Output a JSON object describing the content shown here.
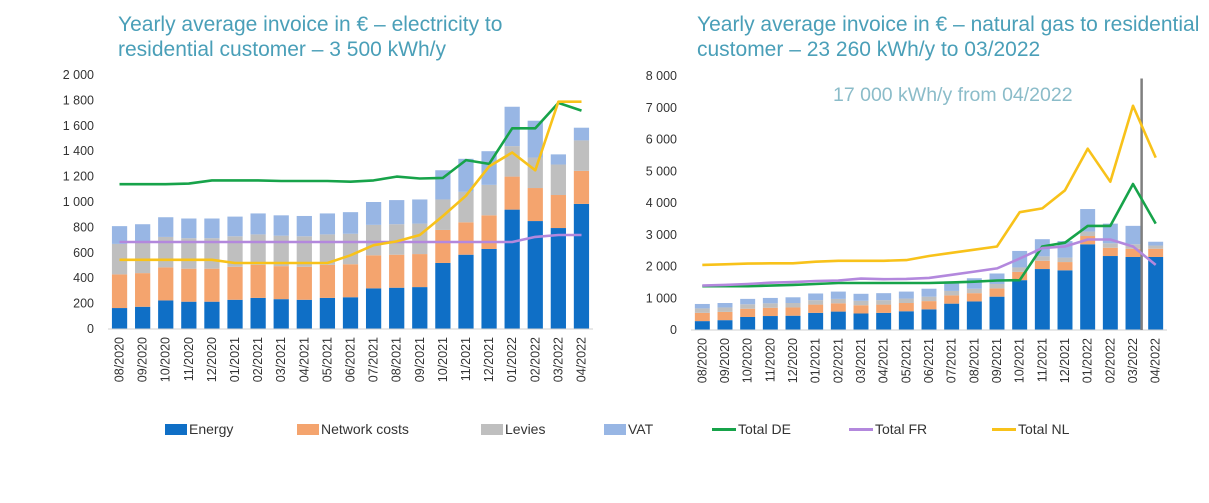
{
  "chart_data": [
    {
      "type": "bar",
      "stacked": true,
      "title": "Yearly average invoice in € – electricity to residential customer – 3 500 kWh/y",
      "categories": [
        "08/2020",
        "09/2020",
        "10/2020",
        "11/2020",
        "12/2020",
        "01/2021",
        "02/2021",
        "03/2021",
        "04/2021",
        "05/2021",
        "06/2021",
        "07/2021",
        "08/2021",
        "09/2021",
        "10/2021",
        "11/2021",
        "12/2021",
        "01/2022",
        "02/2022",
        "03/2022",
        "04/2022"
      ],
      "ylim": [
        0,
        2000
      ],
      "yticks": [
        "0",
        "200",
        "400",
        "600",
        "800",
        "1 000",
        "1 200",
        "1 400",
        "1 600",
        "1 800",
        "2 000"
      ],
      "grid": false,
      "series": [
        {
          "name": "Energy",
          "kind": "bar",
          "values": [
            165,
            175,
            225,
            215,
            215,
            230,
            245,
            235,
            230,
            245,
            250,
            320,
            325,
            330,
            520,
            585,
            630,
            940,
            850,
            795,
            985
          ]
        },
        {
          "name": "Network costs",
          "kind": "bar",
          "values": [
            265,
            265,
            260,
            260,
            260,
            260,
            260,
            260,
            260,
            260,
            260,
            260,
            260,
            260,
            260,
            255,
            265,
            260,
            260,
            260,
            260
          ]
        },
        {
          "name": "Levies",
          "kind": "bar",
          "values": [
            240,
            240,
            240,
            240,
            240,
            240,
            240,
            240,
            240,
            240,
            240,
            240,
            240,
            240,
            240,
            240,
            240,
            240,
            240,
            240,
            240
          ]
        },
        {
          "name": "VAT",
          "kind": "bar",
          "values": [
            140,
            145,
            155,
            155,
            155,
            155,
            165,
            160,
            160,
            165,
            170,
            180,
            190,
            190,
            230,
            260,
            265,
            310,
            290,
            80,
            100
          ]
        },
        {
          "name": "Total DE",
          "kind": "line",
          "values": [
            1140,
            1140,
            1140,
            1145,
            1170,
            1170,
            1170,
            1165,
            1165,
            1165,
            1160,
            1170,
            1200,
            1185,
            1190,
            1330,
            1300,
            1580,
            1580,
            1780,
            1720
          ]
        },
        {
          "name": "Total FR",
          "kind": "line",
          "values": [
            685,
            685,
            685,
            685,
            685,
            685,
            685,
            685,
            685,
            685,
            685,
            685,
            685,
            685,
            685,
            685,
            685,
            685,
            725,
            740,
            740
          ]
        },
        {
          "name": "Total NL",
          "kind": "line",
          "values": [
            545,
            545,
            545,
            545,
            545,
            520,
            520,
            520,
            520,
            520,
            580,
            660,
            690,
            740,
            890,
            1050,
            1280,
            1390,
            1250,
            1790,
            1790
          ]
        }
      ]
    },
    {
      "type": "bar",
      "stacked": true,
      "title": "Yearly average invoice in € – natural gas to residential customer – 23 260 kWh/y to 03/2022",
      "annotation": "17 000 kWh/y from 04/2022",
      "categories": [
        "08/2020",
        "09/2020",
        "10/2020",
        "11/2020",
        "12/2020",
        "01/2021",
        "02/2021",
        "03/2021",
        "04/2021",
        "05/2021",
        "06/2021",
        "07/2021",
        "08/2021",
        "09/2021",
        "10/2021",
        "11/2021",
        "12/2021",
        "01/2022",
        "02/2022",
        "03/2022",
        "04/2022"
      ],
      "ylim": [
        0,
        8000
      ],
      "yticks": [
        "0",
        "1 000",
        "2 000",
        "3 000",
        "4 000",
        "5 000",
        "6 000",
        "7 000",
        "8 000"
      ],
      "grid": false,
      "series": [
        {
          "name": "Energy",
          "kind": "bar",
          "values": [
            280,
            310,
            410,
            440,
            450,
            540,
            580,
            520,
            540,
            590,
            650,
            830,
            900,
            1050,
            1570,
            1920,
            1880,
            2700,
            2330,
            2300,
            2300
          ]
        },
        {
          "name": "Network costs",
          "kind": "bar",
          "values": [
            260,
            260,
            260,
            260,
            260,
            260,
            260,
            260,
            260,
            260,
            260,
            260,
            260,
            260,
            260,
            260,
            260,
            260,
            260,
            260,
            260
          ]
        },
        {
          "name": "Levies",
          "kind": "bar",
          "values": [
            140,
            140,
            140,
            140,
            140,
            140,
            140,
            140,
            140,
            140,
            140,
            140,
            140,
            140,
            140,
            140,
            140,
            140,
            140,
            140,
            100
          ]
        },
        {
          "name": "VAT",
          "kind": "bar",
          "values": [
            140,
            140,
            170,
            170,
            180,
            210,
            230,
            220,
            220,
            220,
            250,
            300,
            330,
            330,
            520,
            540,
            520,
            710,
            620,
            580,
            120
          ]
        },
        {
          "name": "Total DE",
          "kind": "line",
          "values": [
            1380,
            1380,
            1380,
            1400,
            1420,
            1450,
            1480,
            1480,
            1480,
            1480,
            1480,
            1500,
            1520,
            1560,
            1570,
            2630,
            2750,
            3280,
            3280,
            4600,
            3350
          ]
        },
        {
          "name": "Total FR",
          "kind": "line",
          "values": [
            1400,
            1420,
            1450,
            1490,
            1510,
            1540,
            1560,
            1620,
            1600,
            1610,
            1640,
            1740,
            1840,
            1940,
            2250,
            2580,
            2630,
            2850,
            2850,
            2630,
            2050
          ]
        },
        {
          "name": "Total NL",
          "kind": "line",
          "values": [
            2050,
            2070,
            2090,
            2100,
            2100,
            2150,
            2180,
            2180,
            2180,
            2200,
            2330,
            2430,
            2530,
            2630,
            3710,
            3830,
            4400,
            5710,
            4670,
            7060,
            5430
          ]
        }
      ]
    }
  ],
  "legend": [
    {
      "label": "Energy",
      "kind": "box",
      "color": "#0f6fc6"
    },
    {
      "label": "Network costs",
      "kind": "box",
      "color": "#f4a46e"
    },
    {
      "label": "Levies",
      "kind": "box",
      "color": "#bfbfbf"
    },
    {
      "label": "VAT",
      "kind": "box",
      "color": "#98b6e4"
    },
    {
      "label": "Total DE",
      "kind": "line",
      "color": "#17a34a"
    },
    {
      "label": "Total FR",
      "kind": "line",
      "color": "#b388dd"
    },
    {
      "label": "Total NL",
      "kind": "line",
      "color": "#f8c21a"
    }
  ],
  "colors": {
    "Energy": "#0f6fc6",
    "Network costs": "#f4a46e",
    "Levies": "#bfbfbf",
    "VAT": "#98b6e4",
    "Total DE": "#17a34a",
    "Total FR": "#b388dd",
    "Total NL": "#f8c21a",
    "title": "#4a9fb8",
    "marker": "#7f7f7f"
  }
}
